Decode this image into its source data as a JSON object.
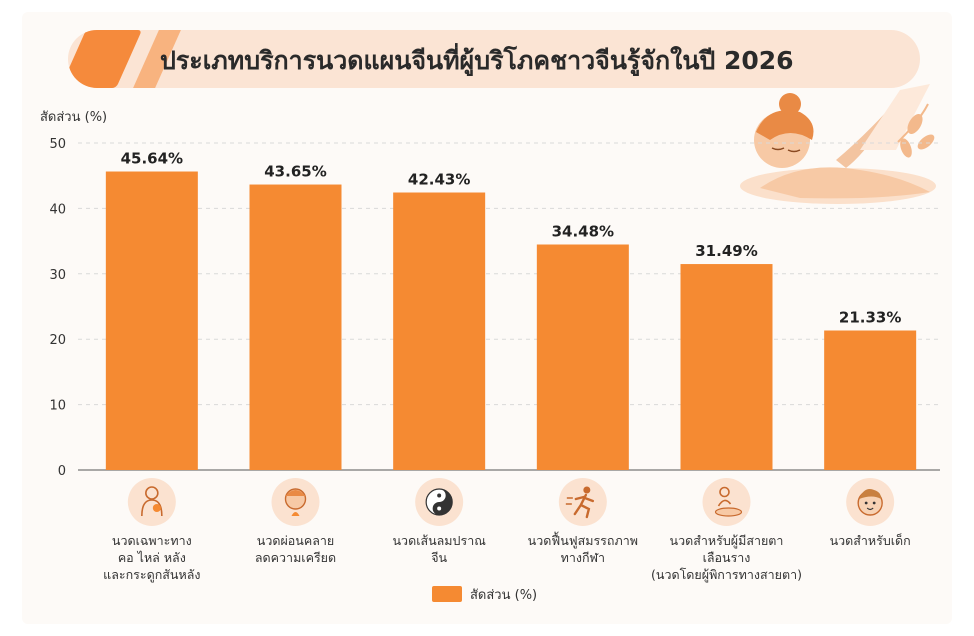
{
  "chart_data": {
    "type": "bar",
    "title": "ประเภทบริการนวดแผนจีนที่ผู้บริโภคชาวจีนรู้จักในปี 2026",
    "ylabel": "สัดส่วน (%)",
    "ylim": [
      0,
      50
    ],
    "yticks": [
      0,
      10,
      20,
      30,
      40,
      50
    ],
    "grid": true,
    "legend_position": "bottom-center",
    "categories": [
      [
        "นวดเฉพาะทาง",
        "คอ ไหล่ หลัง",
        "และกระดูกสันหลัง"
      ],
      [
        "นวดผ่อนคลาย",
        "ลดความเครียด"
      ],
      [
        "นวดเส้นลมปราณ",
        "จีน"
      ],
      [
        "นวดฟื้นฟูสมรรถภาพ",
        "ทางกีฬา"
      ],
      [
        "นวดสำหรับผู้มีสายตา",
        "เลือนราง",
        "(นวดโดยผู้พิการทางสายตา)"
      ],
      [
        "นวดสำหรับเด็ก"
      ]
    ],
    "series": [
      {
        "name": "สัดส่วน (%)",
        "values": [
          45.64,
          43.65,
          42.43,
          34.48,
          31.49,
          21.33
        ],
        "labels": [
          "45.64%",
          "43.65%",
          "42.43%",
          "34.48%",
          "31.49%",
          "21.33%"
        ]
      }
    ],
    "category_icons": [
      "spine-body-icon",
      "relaxed-face-icon",
      "yin-yang-icon",
      "running-person-icon",
      "massage-therapist-icon",
      "child-face-icon"
    ]
  },
  "colors": {
    "bar": "#f58a32",
    "accent": "#f58a3c",
    "icon_bg": "#fbe2d0",
    "grid": "#d9d9d9"
  },
  "decoration": {
    "illustration": "massage-illustration"
  }
}
